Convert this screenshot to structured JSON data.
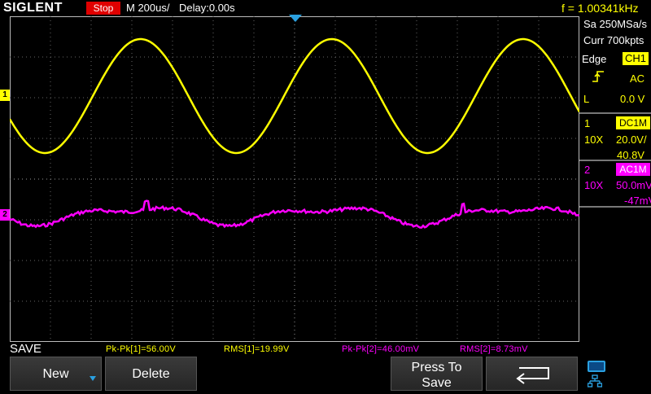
{
  "header": {
    "brand": "SIGLENT",
    "run_state": "Stop",
    "timebase": "M 200us/",
    "delay": "Delay:0.00s",
    "frequency": "f = 1.00341kHz"
  },
  "acquisition": {
    "sample_rate": "Sa 250MSa/s",
    "memory_depth": "Curr 700kpts"
  },
  "trigger": {
    "type": "Edge",
    "source": "CH1",
    "slope_icon": "rising-edge-icon",
    "coupling": "AC",
    "level_label": "L",
    "level_value": "0.0 V"
  },
  "channels": [
    {
      "number": "1",
      "coupling": "DC1M",
      "probe": "10X",
      "scale": "20.0V/",
      "offset": "40.8V",
      "color": "#ffff00",
      "marker": "1"
    },
    {
      "number": "2",
      "coupling": "AC1M",
      "probe": "10X",
      "scale": "50.0mV/",
      "offset": "-47mV",
      "color": "#ff00ff",
      "marker": "2"
    }
  ],
  "menu": {
    "title": "SAVE"
  },
  "measurements": [
    {
      "text": "Pk-Pk[1]=56.00V"
    },
    {
      "text": "RMS[1]=19.99V"
    },
    {
      "text": "Pk-Pk[2]=46.00mV"
    },
    {
      "text": "RMS[2]=8.73mV"
    }
  ],
  "softkeys": {
    "new": "New",
    "delete": "Delete",
    "press_to_save_1": "Press To",
    "press_to_save_2": "Save",
    "back_icon": "return-arrow-icon"
  },
  "status_icons": [
    "usb-icon",
    "network-icon"
  ],
  "colors": {
    "ch1": "#ffff00",
    "ch2": "#ff00ff",
    "accent": "#2aa0e0",
    "stop": "#e00000"
  }
}
